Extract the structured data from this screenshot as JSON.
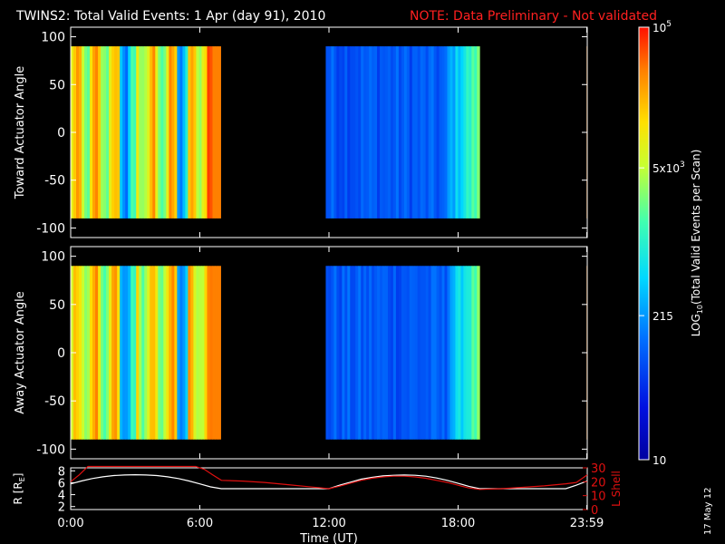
{
  "title": "TWINS2: Total Valid Events:  1 Apr (day  91), 2010",
  "note": "NOTE: Data Preliminary - Not validated",
  "side_date": "17 May 12",
  "colors": {
    "note": "#ff2020",
    "bg": "#000000",
    "axis": "#ffffff",
    "lshell": "#e01010",
    "r": "#ffffff"
  },
  "chart_data": [
    {
      "type": "heatmap",
      "name": "toward",
      "ylabel": "Toward Actuator Angle",
      "ylim": [
        -110,
        110
      ],
      "yticks": [
        100,
        50,
        0,
        -50,
        -100
      ],
      "xlim": [
        0,
        24
      ],
      "y_range": [
        -90,
        90
      ],
      "segments": [
        {
          "x0": 0,
          "x1": 6.97,
          "base": "high"
        },
        {
          "x0": 11.85,
          "x1": 19.0,
          "base": "low"
        },
        {
          "x0": 23.97,
          "x1": 24.0,
          "base": "edge"
        }
      ]
    },
    {
      "type": "heatmap",
      "name": "away",
      "ylabel": "Away Actuator Angle",
      "ylim": [
        -110,
        110
      ],
      "yticks": [
        100,
        50,
        0,
        -50,
        -100
      ],
      "xlim": [
        0,
        24
      ],
      "y_range": [
        -90,
        90
      ],
      "segments": [
        {
          "x0": 0,
          "x1": 6.97,
          "base": "high"
        },
        {
          "x0": 11.85,
          "x1": 19.0,
          "base": "low"
        },
        {
          "x0": 23.97,
          "x1": 24.0,
          "base": "edge"
        }
      ]
    },
    {
      "type": "line",
      "name": "orbit",
      "ylabel": "R [R",
      "ylabel_sub": "E",
      "ylabel_close": "]",
      "ylabel2": "L Shell",
      "xlabel": "Time (UT)",
      "xticks": [
        "0:00",
        "6:00",
        "12:00",
        "18:00",
        "23:59"
      ],
      "xtick_values": [
        0,
        6,
        12,
        18,
        23.98
      ],
      "ylim": [
        1.5,
        8.5
      ],
      "yticks": [
        8,
        6,
        4,
        2
      ],
      "ylim2": [
        0,
        30
      ],
      "yticks2": [
        30,
        20,
        10,
        0
      ],
      "series": [
        {
          "axis": "left",
          "x": [
            0,
            0.5,
            1,
            1.5,
            2,
            2.5,
            3,
            3.5,
            4,
            4.5,
            5,
            5.5,
            6,
            6.5,
            7,
            8,
            9,
            10,
            11,
            12,
            12.5,
            13,
            13.5,
            14,
            14.5,
            15,
            15.5,
            16,
            16.5,
            17,
            17.5,
            18,
            18.5,
            19,
            20,
            21,
            22,
            23,
            23.5,
            24
          ],
          "y": [
            5.8,
            6.3,
            6.7,
            7.0,
            7.2,
            7.3,
            7.35,
            7.3,
            7.2,
            7.0,
            6.7,
            6.3,
            5.8,
            5.3,
            5.0,
            5.0,
            5.0,
            5.0,
            5.0,
            5.0,
            5.6,
            6.1,
            6.6,
            6.9,
            7.15,
            7.25,
            7.3,
            7.25,
            7.1,
            6.8,
            6.4,
            5.9,
            5.4,
            5.0,
            5.0,
            5.0,
            5.0,
            5.0,
            5.6,
            6.3
          ]
        },
        {
          "axis": "right",
          "x": [
            0,
            0.4,
            0.8,
            1.2,
            5.8,
            6.2,
            6.6,
            7,
            8,
            9,
            10,
            11,
            12,
            12.5,
            13,
            13.5,
            14,
            14.5,
            15,
            15.5,
            16,
            16.5,
            17,
            17.5,
            18,
            18.5,
            19,
            20,
            21,
            22,
            23,
            23.5,
            24
          ],
          "y": [
            20,
            25,
            31,
            31,
            31,
            29,
            25,
            21,
            20.5,
            19.5,
            18,
            16.5,
            15,
            16.8,
            19,
            21,
            22.5,
            23.5,
            24,
            24,
            23.5,
            22.5,
            21,
            19.5,
            17.5,
            15.5,
            14.5,
            15,
            16,
            17,
            18.5,
            19.5,
            25
          ]
        }
      ]
    }
  ],
  "colorbar": {
    "label_prefix": "LOG",
    "label_sub": "10",
    "label_suffix": "(Total Valid  Events per Scan)",
    "min": 10,
    "max": 100000,
    "ticks": [
      {
        "label": "10",
        "value": 10
      },
      {
        "label": "215",
        "value": 215
      },
      {
        "label": "5x10",
        "sup": "3",
        "value": 5000
      },
      {
        "label": "10",
        "sup": "5",
        "value": 100000
      }
    ]
  }
}
